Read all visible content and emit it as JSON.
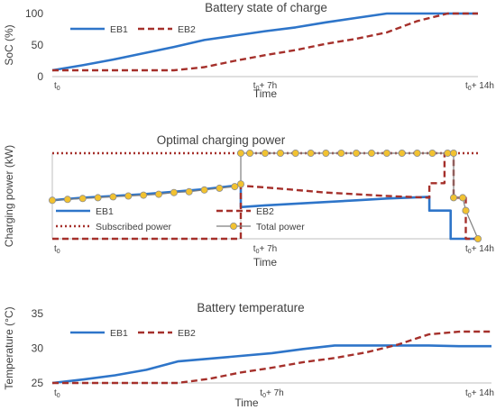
{
  "chart_data": [
    {
      "type": "line",
      "title": "Battery state of charge",
      "xlabel": "Time",
      "ylabel": "SoC (%)",
      "ylim": [
        0,
        100
      ],
      "yticks": [
        "0",
        "50",
        "100"
      ],
      "xticks": [
        {
          "t": 0,
          "label": "t₀"
        },
        {
          "t": 7,
          "label": "t₀+ 7h"
        },
        {
          "t": 14,
          "label": "t₀+ 14h"
        }
      ],
      "xlim": [
        0,
        14
      ],
      "series": [
        {
          "name": "EB1",
          "color": "#2e75c9",
          "style": "solid",
          "x": [
            0,
            1,
            2,
            3,
            4,
            5,
            6,
            7,
            8,
            9,
            10,
            11,
            12,
            13,
            14
          ],
          "y": [
            10,
            18,
            27,
            37,
            47,
            58,
            65,
            72,
            78,
            86,
            93,
            100,
            100,
            100,
            100
          ]
        },
        {
          "name": "EB2",
          "color": "#a5302b",
          "style": "dashed",
          "x": [
            0,
            1,
            2,
            3,
            4,
            5,
            6,
            7,
            8,
            9,
            10,
            11,
            12,
            13,
            14
          ],
          "y": [
            10,
            10,
            10,
            10,
            10,
            15,
            25,
            34,
            42,
            52,
            60,
            70,
            88,
            100,
            100
          ]
        }
      ]
    },
    {
      "type": "line",
      "title": "Optimal charging power",
      "xlabel": "Time",
      "ylabel": "Charging power (kW)",
      "xticks": [
        {
          "t": 0,
          "label": "t₀"
        },
        {
          "t": 7,
          "label": "t₀+ 7h"
        },
        {
          "t": 14,
          "label": "t₀+ 14h"
        }
      ],
      "xlim": [
        0,
        14
      ],
      "ylim": [
        0,
        100
      ],
      "series": [
        {
          "name": "EB1",
          "color": "#2e75c9",
          "style": "solid",
          "x": [
            0,
            0.3,
            1,
            2,
            3,
            4,
            5,
            6,
            6.2,
            6.2,
            7,
            8,
            9,
            10,
            11,
            12.4,
            12.4,
            13.1,
            13.1,
            14
          ],
          "y": [
            45,
            46,
            48,
            50,
            52,
            55,
            58,
            62,
            64,
            37,
            39,
            41,
            43,
            45,
            47,
            49,
            33,
            33,
            0,
            0
          ]
        },
        {
          "name": "EB2",
          "color": "#a5302b",
          "style": "dashed",
          "x": [
            0,
            6.2,
            6.2,
            7,
            8,
            9,
            10,
            11,
            12.4,
            12.4,
            12.9,
            12.9,
            13.2,
            13.2,
            13.6,
            13.6,
            14
          ],
          "y": [
            0,
            0,
            62,
            60,
            57,
            54,
            52,
            50,
            48,
            65,
            65,
            100,
            100,
            48,
            48,
            0,
            0
          ]
        },
        {
          "name": "Subscribed power",
          "color": "#a5302b",
          "style": "dotted",
          "x": [
            0,
            14
          ],
          "y": [
            100,
            100
          ]
        },
        {
          "name": "Total power",
          "color": "#7f7f7f",
          "style": "markers",
          "x": [
            0,
            0.5,
            1,
            1.5,
            2,
            2.5,
            3,
            3.5,
            4,
            4.5,
            5,
            5.5,
            6,
            6.2,
            6.2,
            6.5,
            7,
            7.5,
            8,
            8.5,
            9,
            9.5,
            10,
            10.5,
            11,
            11.5,
            12,
            12.5,
            13,
            13.2,
            13.2,
            13.5,
            13.6,
            13.6,
            14
          ],
          "y": [
            45,
            46,
            47,
            48,
            49,
            50,
            51,
            52,
            54,
            55,
            57,
            59,
            61,
            64,
            100,
            100,
            100,
            100,
            100,
            100,
            100,
            100,
            100,
            100,
            100,
            100,
            100,
            100,
            100,
            100,
            48,
            48,
            33,
            33,
            0
          ]
        }
      ]
    },
    {
      "type": "line",
      "title": "Battery temperature",
      "xlabel": "Time",
      "ylabel": "Temperature (°C)",
      "ylim": [
        25,
        35
      ],
      "yticks": [
        "25",
        "30",
        "35"
      ],
      "xticks": [
        {
          "t": 0,
          "label": "t₀"
        },
        {
          "t": 7,
          "label": "t₀+ 7h"
        },
        {
          "t": 14,
          "label": "t₀+ 14h"
        }
      ],
      "xlim": [
        0,
        14
      ],
      "series": [
        {
          "name": "EB1",
          "color": "#2e75c9",
          "style": "solid",
          "x": [
            0,
            1,
            2,
            3,
            4,
            5,
            6,
            7,
            8,
            9,
            10,
            11,
            12,
            13,
            14
          ],
          "y": [
            25,
            25.5,
            26.1,
            26.9,
            28.1,
            28.5,
            28.9,
            29.3,
            29.9,
            30.4,
            30.4,
            30.4,
            30.4,
            30.3,
            30.3
          ]
        },
        {
          "name": "EB2",
          "color": "#a5302b",
          "style": "dashed",
          "x": [
            0,
            1,
            2,
            3,
            4,
            5,
            6,
            7,
            8,
            9,
            10,
            11,
            12,
            13,
            14
          ],
          "y": [
            25,
            25,
            25,
            25,
            25,
            25.6,
            26.5,
            27.2,
            28,
            28.6,
            29.4,
            30.5,
            32,
            32.4,
            32.4
          ]
        }
      ]
    }
  ]
}
